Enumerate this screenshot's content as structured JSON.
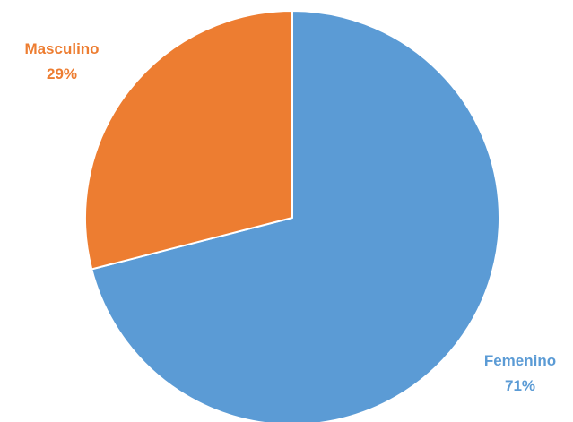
{
  "chart_data": {
    "type": "pie",
    "title": "",
    "start_angle_deg": 90,
    "direction": "clockwise",
    "slices": [
      {
        "label": "Femenino",
        "value": 71,
        "display_value": "71%",
        "color": "#5B9BD5",
        "label_color": "#5B9BD5"
      },
      {
        "label": "Masculino",
        "value": 29,
        "display_value": "29%",
        "color": "#ED7D31",
        "label_color": "#ED7D31"
      }
    ],
    "legend": "none"
  }
}
